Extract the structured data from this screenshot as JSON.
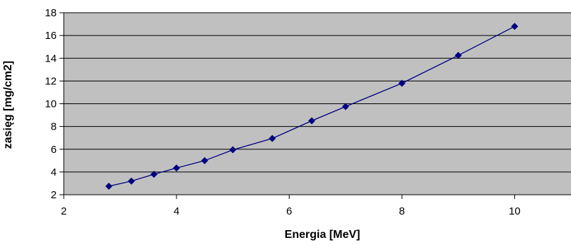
{
  "chart_data": {
    "type": "line",
    "xlabel": "Energia [MeV]",
    "ylabel": "zasięg [mg/cm2]",
    "xlim": [
      2,
      11
    ],
    "ylim": [
      2,
      18
    ],
    "x_ticks": [
      2,
      4,
      6,
      8,
      10
    ],
    "y_ticks": [
      2,
      4,
      6,
      8,
      10,
      12,
      14,
      16,
      18
    ],
    "grid": "horizontal",
    "legend": "none",
    "series": [
      {
        "x": [
          2.8,
          3.2,
          3.6,
          4.0,
          4.5,
          5.0,
          5.7,
          6.4,
          7.0,
          8.0,
          9.0,
          10.0
        ],
        "y": [
          2.75,
          3.2,
          3.8,
          4.35,
          5.0,
          5.95,
          6.95,
          8.5,
          9.75,
          11.8,
          14.25,
          16.8
        ]
      }
    ]
  },
  "colors": {
    "plot_background": "#c0c0c0",
    "gridline": "#000000",
    "series": "#000080"
  }
}
